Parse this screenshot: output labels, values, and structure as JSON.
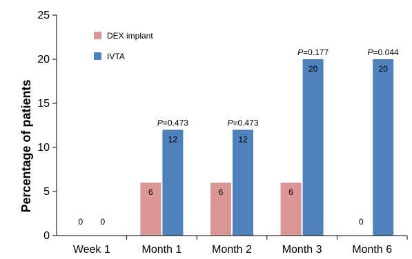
{
  "chart_data": {
    "type": "bar",
    "title": "",
    "xlabel": "",
    "ylabel": "Percentage of patients",
    "ylim": [
      0,
      25
    ],
    "yticks": [
      0,
      5,
      10,
      15,
      20,
      25
    ],
    "grid": false,
    "legend_position": "top-left",
    "categories": [
      "Week 1",
      "Month 1",
      "Month 2",
      "Month 3",
      "Month 6"
    ],
    "series": [
      {
        "name": "DEX implant",
        "color": "#D99694",
        "values": [
          0,
          6,
          6,
          6,
          0
        ]
      },
      {
        "name": "IVTA",
        "color": "#4F81BD",
        "values": [
          0,
          12,
          12,
          20,
          20
        ]
      }
    ],
    "annotations": [
      {
        "category": "Week 1",
        "prefix": "",
        "text": ""
      },
      {
        "category": "Month 1",
        "prefix": "P",
        "text": "=0.473"
      },
      {
        "category": "Month 2",
        "prefix": "P",
        "text": "=0.473"
      },
      {
        "category": "Month 3",
        "prefix": "P",
        "text": "=0.177"
      },
      {
        "category": "Month 6",
        "prefix": "P",
        "text": "=0.044"
      }
    ]
  }
}
